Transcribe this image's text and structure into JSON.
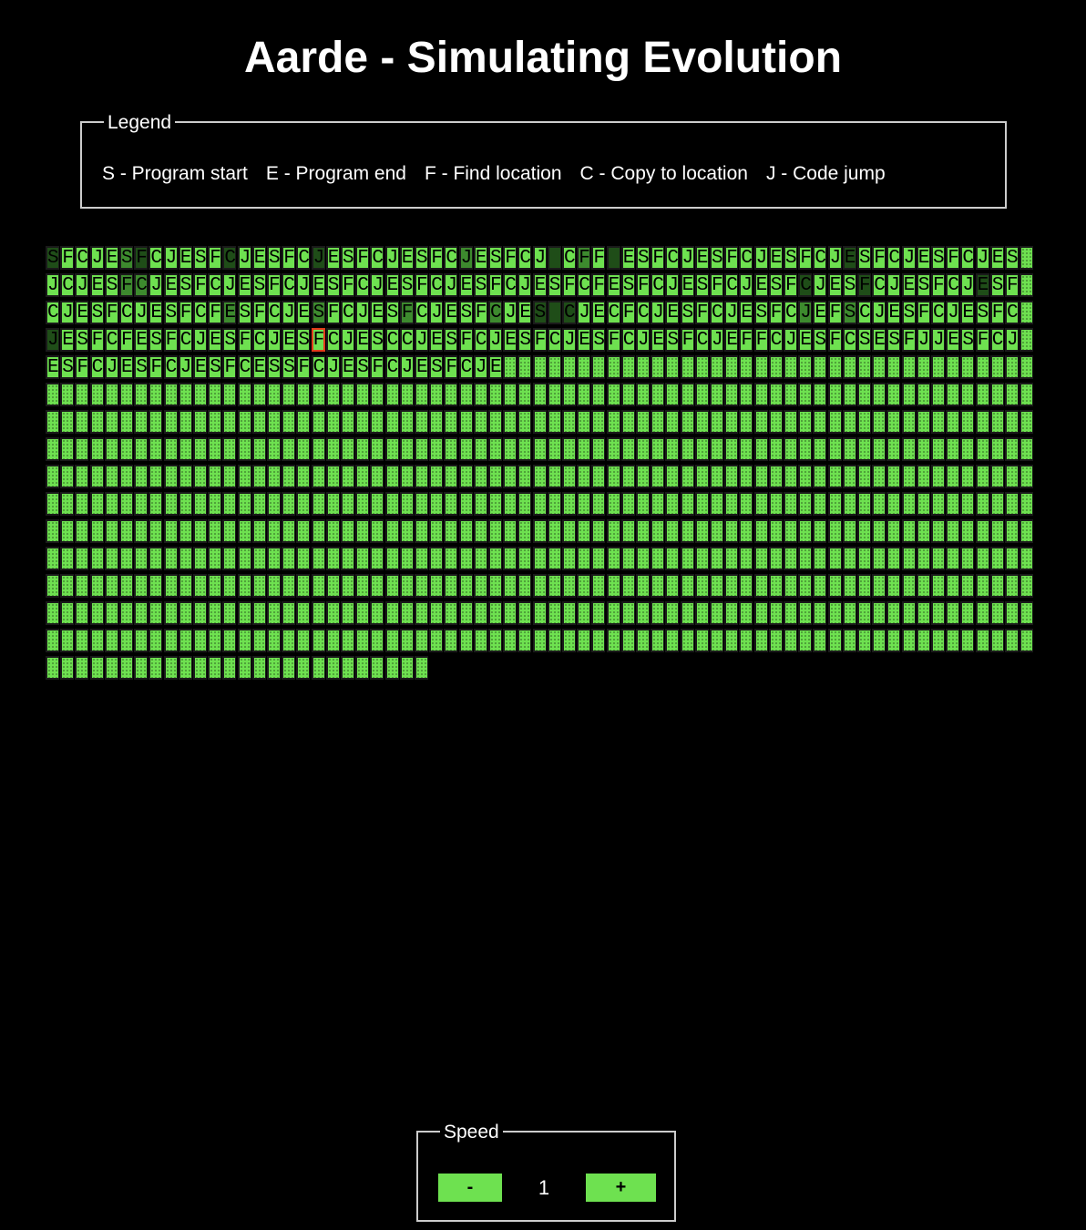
{
  "title": "Aarde - Simulating Evolution",
  "legend": {
    "title": "Legend",
    "items": [
      "S - Program start",
      "E - Program end",
      "F - Find location",
      "C - Copy to location",
      "J - Code jump"
    ]
  },
  "memory": {
    "columns": 67,
    "cell_count": 1031,
    "active_row": 3,
    "active_col": 18,
    "code_rows": [
      "SFCJESFCJESFCJESFCJESFCJESFCJESFCJ CFF ESFCJESFCJESFCJESFCJESFCJES",
      "JCJESFCJESFCJESFCJESFCJESFCJESFCJESFCFESFCJESFCJESFCJESFCJESFCJESF",
      "CJESFCJESFCFESFCJESFCJESFCJESFCJES CJECFCJESFCJESFCJEFSCJESFCJESFC",
      "JESFCFESFCJESFCJESFCJESCCJESFCJESFCJESFCJESFCJEFFCJESFCSESFJJESFCJ",
      "ESFCJESFCJESFCESSFCJESFCJESFCJE"
    ],
    "shade_rows": [
      "3000023000003000003000000000200000202000000000000000003000000000000",
      "0000022000000000000000000000000000000000000000000003000300000003000",
      "0000000000002000002000002000002003030000000000000002002000000000000",
      "3000000000000000000000000000000000000000000000000000000000000000000",
      "0000000000000000000000000000000"
    ]
  },
  "speed": {
    "title": "Speed",
    "minus_label": "-",
    "value": "1",
    "plus_label": "+"
  }
}
